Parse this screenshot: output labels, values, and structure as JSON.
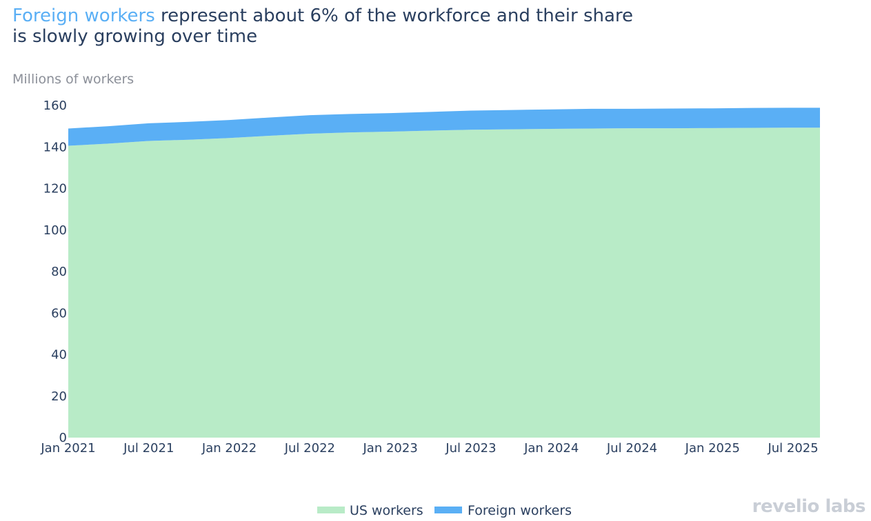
{
  "title": {
    "highlight": "Foreign workers",
    "rest_line1": " represent about 6% of the workforce and their share",
    "line2": "is slowly growing over time"
  },
  "brand": "revelio labs",
  "colors": {
    "us": "#b8ebc7",
    "foreign": "#5aaff5",
    "title": "#2a3f5f",
    "highlight": "#5aaff5"
  },
  "chart_data": {
    "type": "area",
    "stacked": true,
    "ylabel": "Millions of workers",
    "ylim": [
      0,
      160
    ],
    "yticks": [
      0,
      20,
      40,
      60,
      80,
      100,
      120,
      140,
      160
    ],
    "xticks": [
      "Jan 2021",
      "Jul 2021",
      "Jan 2022",
      "Jul 2022",
      "Jan 2023",
      "Jul 2023",
      "Jan 2024",
      "Jul 2024",
      "Jan 2025",
      "Jul 2025"
    ],
    "x": [
      "Jan 2021",
      "Apr 2021",
      "Jul 2021",
      "Oct 2021",
      "Jan 2022",
      "Apr 2022",
      "Jul 2022",
      "Oct 2022",
      "Jan 2023",
      "Apr 2023",
      "Jul 2023",
      "Oct 2023",
      "Jan 2024",
      "Apr 2024",
      "Jul 2024",
      "Oct 2024",
      "Jan 2025",
      "Apr 2025",
      "Jul 2025",
      "Sep 2025"
    ],
    "series": [
      {
        "name": "US workers",
        "values": [
          140.6,
          141.6,
          142.9,
          143.5,
          144.3,
          145.4,
          146.4,
          147.0,
          147.4,
          147.9,
          148.3,
          148.5,
          148.7,
          148.9,
          149.0,
          149.0,
          149.1,
          149.2,
          149.3,
          149.3
        ]
      },
      {
        "name": "Foreign workers",
        "values": [
          8.3,
          8.4,
          8.5,
          8.6,
          8.7,
          8.8,
          8.9,
          8.9,
          8.9,
          9.0,
          9.2,
          9.3,
          9.4,
          9.5,
          9.4,
          9.5,
          9.5,
          9.6,
          9.6,
          9.6
        ]
      }
    ],
    "legend_position": "bottom-center",
    "grid": false
  }
}
